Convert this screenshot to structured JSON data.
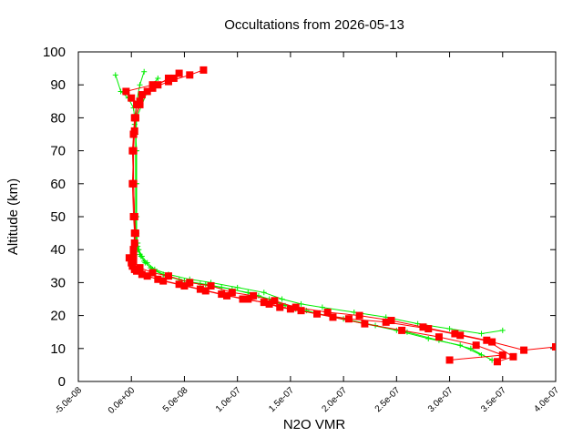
{
  "chart_data": {
    "type": "scatter",
    "title": "Occultations from 2026-05-13",
    "xlabel": "N2O VMR",
    "ylabel": "Altitude (km)",
    "xlim": [
      -5e-08,
      4e-07
    ],
    "ylim": [
      0,
      100
    ],
    "x_ticks": [
      -5e-08,
      0,
      5e-08,
      1e-07,
      1.5e-07,
      2e-07,
      2.5e-07,
      3e-07,
      3.5e-07,
      4e-07
    ],
    "x_tick_labels": [
      "-5.0e-08",
      "0.0e+00",
      "5.0e-08",
      "1.0e-07",
      "1.5e-07",
      "2.0e-07",
      "2.5e-07",
      "3.0e-07",
      "3.5e-07",
      "4.0e-07"
    ],
    "y_ticks": [
      0,
      10,
      20,
      30,
      40,
      50,
      60,
      70,
      80,
      90,
      100
    ],
    "y_tick_labels": [
      "0",
      "10",
      "20",
      "30",
      "40",
      "50",
      "60",
      "70",
      "80",
      "90",
      "100"
    ],
    "grid": false,
    "legend": "none",
    "series": [
      {
        "color": "#00ee00",
        "marker": "plus",
        "profiles": [
          {
            "x": [
              3.4e-07,
              3.2e-07,
              2.9e-07,
              2.6e-07,
              2.3e-07,
              2e-07,
              1.75e-07,
              1.55e-07,
              1.38e-07,
              1.2e-07,
              9.5e-08,
              7e-08,
              5e-08,
              3.2e-08,
              2e-08,
              1.3e-08,
              9e-09,
              6e-09,
              5e-09,
              4e-09,
              4e-09,
              4e-09,
              4e-09,
              4e-09,
              3e-09,
              3e-09,
              2e-09,
              -3e-09,
              -1e-08,
              -1.5e-08
            ],
            "y": [
              6.5,
              10,
              12.5,
              15,
              17,
              19,
              20.5,
              22,
              24,
              26,
              28,
              29.5,
              30.5,
              32,
              34,
              36,
              38,
              40,
              42,
              44,
              50,
              60,
              70,
              75,
              78,
              80,
              83,
              86,
              88,
              93
            ]
          },
          {
            "x": [
              3.5e-07,
              3.3e-07,
              3e-07,
              2.7e-07,
              2.4e-07,
              2.1e-07,
              1.8e-07,
              1.6e-07,
              1.42e-07,
              1.25e-07,
              1e-07,
              7.5e-08,
              5.5e-08,
              3.5e-08,
              2.2e-08,
              1.5e-08,
              1e-08,
              7e-09,
              6e-09,
              5e-09,
              5e-09,
              5e-09,
              5e-09,
              4e-09,
              4e-09,
              5e-09,
              8e-09,
              1.2e-08
            ],
            "y": [
              15.5,
              14.5,
              16,
              17.5,
              19.5,
              21,
              22.5,
              23.5,
              25,
              27,
              28.5,
              30,
              31,
              32.5,
              34,
              36,
              38,
              40,
              42,
              45,
              50,
              60,
              70,
              75,
              80,
              85,
              90,
              94
            ]
          },
          {
            "x": [
              3.3e-07,
              3.1e-07,
              2.8e-07,
              2.5e-07,
              2.2e-07,
              1.9e-07,
              1.65e-07,
              1.45e-07,
              1.3e-07,
              1.1e-07,
              8.5e-08,
              6.5e-08,
              4.5e-08,
              3e-08,
              1.8e-08,
              1.2e-08,
              8e-09,
              6e-09,
              5e-09,
              5e-09,
              4e-09,
              4e-09,
              5e-09,
              1.5e-08,
              2.5e-08
            ],
            "y": [
              8,
              11,
              13,
              15.5,
              17.5,
              19.5,
              21.5,
              23,
              25,
              27,
              28.5,
              29.5,
              31,
              32.5,
              34.5,
              36.5,
              38.5,
              41,
              44,
              50,
              60,
              70,
              80,
              88,
              92
            ]
          }
        ]
      },
      {
        "color": "#ff0000",
        "marker": "square",
        "profiles": [
          {
            "x": [
              3e-07,
              3.5e-07,
              3.25e-07,
              2.9e-07,
              2.55e-07,
              2.2e-07,
              1.9e-07,
              1.6e-07,
              1.4e-07,
              1.25e-07,
              1.05e-07,
              8.5e-08,
              6.5e-08,
              4.5e-08,
              2.5e-08,
              1e-08,
              3e-09,
              0,
              2e-09,
              3e-09,
              2e-09,
              1e-09,
              2e-09,
              2e-09,
              3e-09,
              5e-09,
              1e-08,
              2e-08,
              3.5e-08,
              5.5e-08,
              6.8e-08
            ],
            "y": [
              6.5,
              8,
              11,
              13.5,
              15.5,
              17.5,
              19.5,
              21.5,
              22.5,
              24,
              25,
              26.5,
              28,
              29.5,
              31,
              32.5,
              34,
              36,
              40,
              45,
              50,
              60,
              70,
              75,
              80,
              84,
              87,
              89,
              91,
              93,
              94.5
            ]
          },
          {
            "x": [
              4e-07,
              3.7e-07,
              3.4e-07,
              3.1e-07,
              2.8e-07,
              2.4e-07,
              2.05e-07,
              1.75e-07,
              1.5e-07,
              1.3e-07,
              1.1e-07,
              9e-08,
              7e-08,
              5e-08,
              3e-08,
              1.5e-08,
              5e-09,
              1e-09,
              2e-09,
              3e-09,
              3e-09,
              2e-09,
              2e-09,
              3e-09,
              4e-09,
              8e-09,
              1.5e-08,
              2.5e-08,
              3.5e-08,
              4.5e-08
            ],
            "y": [
              10.5,
              9.5,
              12,
              14,
              16,
              18,
              19,
              20.5,
              22,
              23.5,
              25,
              26,
              27.5,
              29,
              30.5,
              32,
              33.5,
              35,
              38,
              42,
              50,
              60,
              70,
              76,
              80,
              85,
              88,
              90,
              92,
              93.5
            ]
          },
          {
            "x": [
              3.45e-07,
              3.6e-07,
              3.35e-07,
              3.05e-07,
              2.75e-07,
              2.45e-07,
              2.15e-07,
              1.85e-07,
              1.55e-07,
              1.35e-07,
              1.15e-07,
              9.5e-08,
              7.5e-08,
              5.5e-08,
              3.5e-08,
              2e-08,
              8e-09,
              2e-09,
              -2e-09,
              2e-09,
              4e-09,
              3e-09,
              2e-09,
              1e-09,
              2e-09,
              4e-09,
              8e-09,
              0,
              -5e-09,
              2e-08,
              4e-08
            ],
            "y": [
              6,
              7.5,
              12.5,
              14.5,
              16.5,
              18.5,
              20,
              21,
              22.5,
              24.5,
              26,
              27,
              29,
              30,
              32,
              33,
              34.5,
              36.5,
              37.5,
              40,
              45,
              50,
              60,
              70,
              75,
              80,
              84,
              86,
              88,
              90,
              92
            ]
          }
        ]
      }
    ]
  }
}
